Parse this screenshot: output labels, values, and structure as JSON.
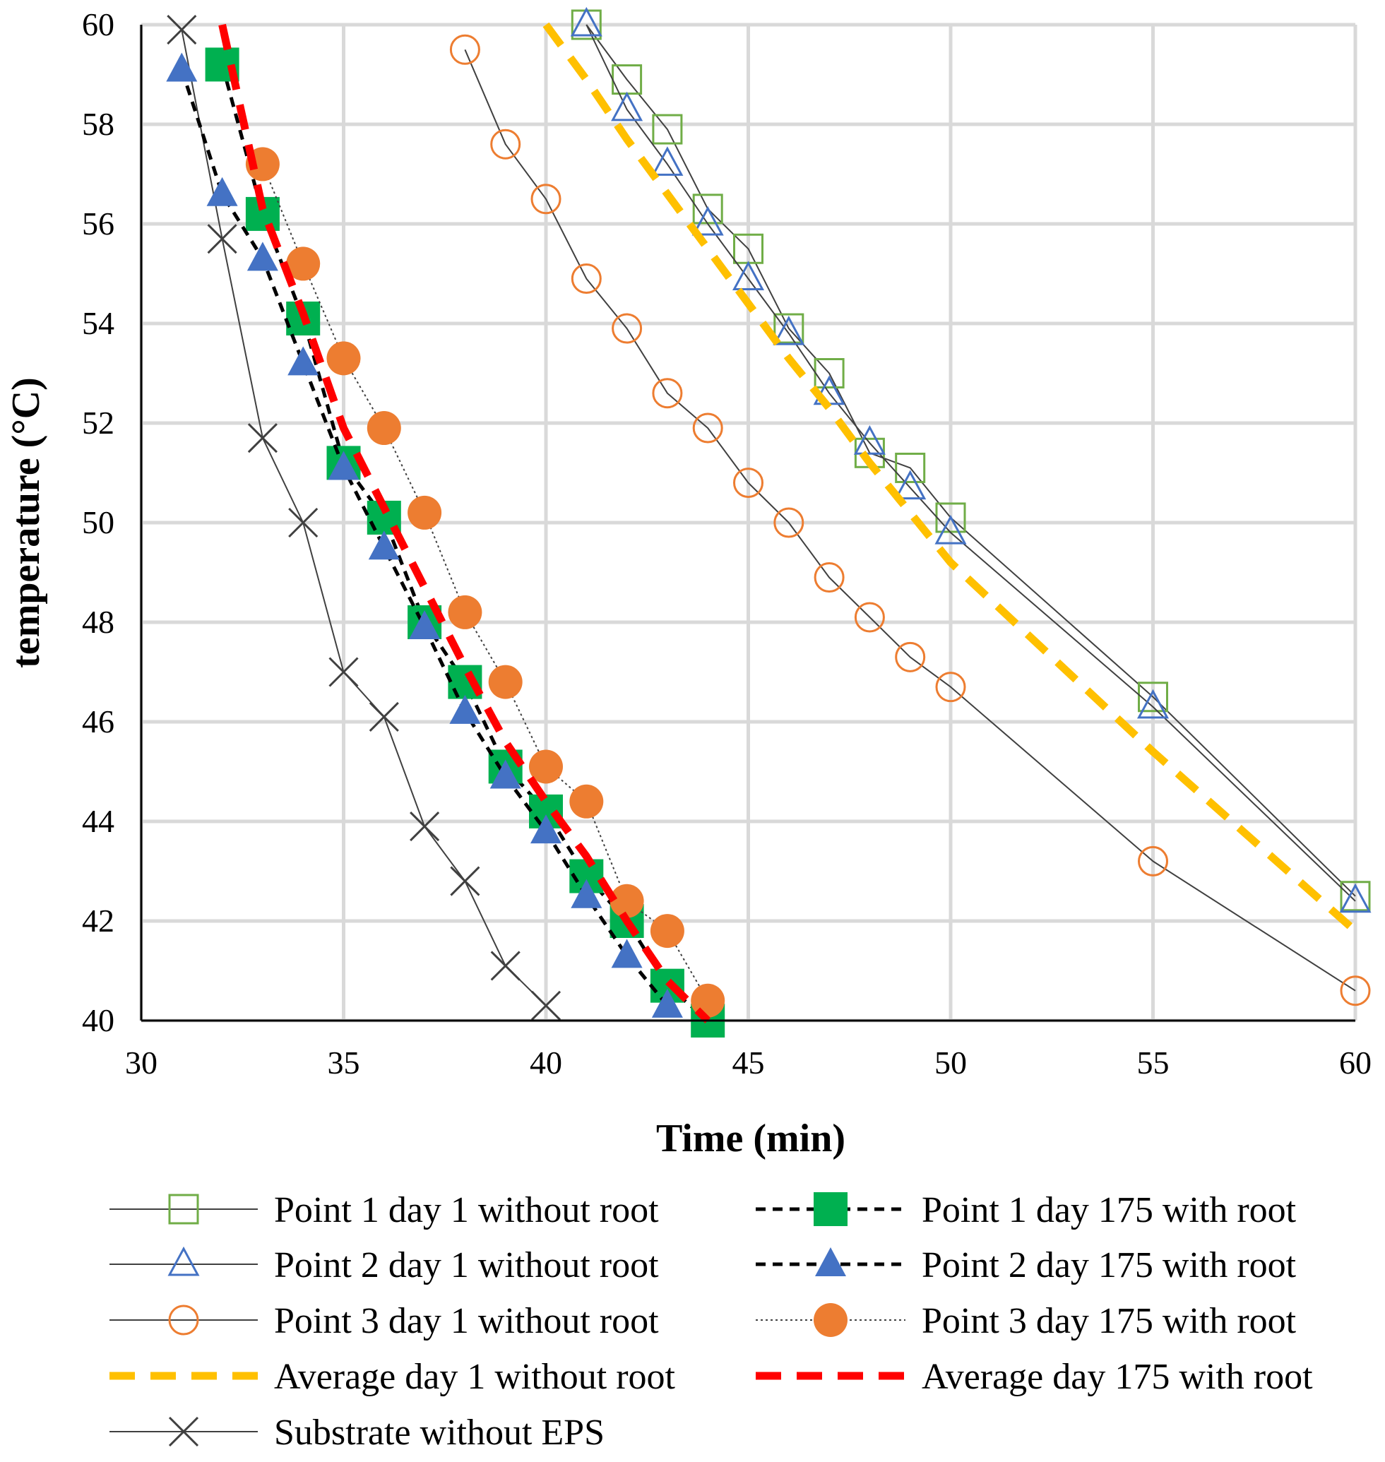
{
  "chart_data": {
    "type": "line",
    "title": "",
    "xlabel": "Time (min)",
    "ylabel": "temperature (°C)",
    "xlim": [
      30,
      60
    ],
    "ylim": [
      40,
      60
    ],
    "xticks": [
      30,
      35,
      40,
      45,
      50,
      55,
      60
    ],
    "yticks": [
      40,
      42,
      44,
      46,
      48,
      50,
      52,
      54,
      56,
      58,
      60
    ],
    "grid": true,
    "legend_position": "bottom",
    "colors": {
      "green": "#00b050",
      "blue": "#4472c4",
      "orange": "#ed7d31",
      "yellow": "#ffc000",
      "red": "#ff0000",
      "grid": "#d9d9d9",
      "axis": "#000000",
      "line": "#404040"
    },
    "series": [
      {
        "name": "Point 1 day 1 without root",
        "marker": "square-open",
        "color": "#70ad47",
        "line": "thin-solid",
        "x": [
          41,
          42,
          43,
          44,
          45,
          46,
          47,
          48,
          49,
          50,
          55,
          60
        ],
        "y": [
          60,
          58.9,
          57.9,
          56.3,
          55.5,
          53.9,
          53.0,
          51.4,
          51.1,
          50.1,
          46.5,
          42.5
        ]
      },
      {
        "name": "Point 2 day 1 without root",
        "marker": "triangle-open",
        "color": "#4472c4",
        "line": "thin-solid",
        "x": [
          41,
          42,
          43,
          44,
          45,
          46,
          47,
          48,
          49,
          50,
          55,
          60
        ],
        "y": [
          60,
          58.3,
          57.2,
          56.0,
          54.9,
          53.8,
          52.6,
          51.6,
          50.7,
          49.8,
          46.3,
          42.4
        ]
      },
      {
        "name": "Point 3 day 1 without root",
        "marker": "circle-open",
        "color": "#ed7d31",
        "line": "thin-solid",
        "x": [
          38,
          39,
          40,
          41,
          42,
          43,
          44,
          45,
          46,
          47,
          48,
          49,
          50,
          55,
          60
        ],
        "y": [
          59.5,
          57.6,
          56.5,
          54.9,
          53.9,
          52.6,
          51.9,
          50.8,
          50.0,
          48.9,
          48.1,
          47.3,
          46.7,
          43.2,
          40.6
        ]
      },
      {
        "name": "Average day 1 without root",
        "marker": "none",
        "color": "#ffc000",
        "line": "thick-dashed",
        "x": [
          40,
          41,
          42,
          43,
          44,
          45,
          46,
          47,
          48,
          49,
          50,
          55,
          60
        ],
        "y": [
          60,
          58.9,
          57.7,
          56.6,
          55.5,
          54.4,
          53.3,
          52.3,
          51.2,
          50.2,
          49.2,
          45.4,
          41.8
        ]
      },
      {
        "name": "Substrate without EPS",
        "marker": "x",
        "color": "#404040",
        "line": "thin-solid",
        "x": [
          31,
          32,
          33,
          34,
          35,
          36,
          37,
          38,
          39,
          40
        ],
        "y": [
          59.9,
          55.7,
          51.7,
          50.0,
          47.0,
          46.1,
          43.9,
          42.8,
          41.1,
          40.3
        ]
      },
      {
        "name": "Point 1 day 175 with root",
        "marker": "square-filled",
        "color": "#00b050",
        "line": "black-dashed",
        "x": [
          32,
          33,
          34,
          35,
          36,
          37,
          38,
          39,
          40,
          41,
          42,
          43,
          44
        ],
        "y": [
          59.2,
          56.2,
          54.1,
          51.2,
          50.1,
          48.0,
          46.8,
          45.1,
          44.2,
          42.9,
          42.0,
          40.7,
          40.0
        ]
      },
      {
        "name": "Point 2 day 175 with root",
        "marker": "triangle-filled",
        "color": "#4472c4",
        "line": "black-dashed",
        "x": [
          31,
          32,
          33,
          34,
          35,
          36,
          37,
          38,
          39,
          40,
          41,
          42,
          43
        ],
        "y": [
          59.1,
          56.6,
          55.3,
          53.2,
          51.1,
          49.5,
          47.9,
          46.2,
          44.9,
          43.8,
          42.5,
          41.3,
          40.3
        ]
      },
      {
        "name": "Point 3 day 175 with root",
        "marker": "circle-filled",
        "color": "#ed7d31",
        "line": "dotted",
        "x": [
          33,
          34,
          35,
          36,
          37,
          38,
          39,
          40,
          41,
          42,
          43,
          44
        ],
        "y": [
          57.2,
          55.2,
          53.3,
          51.9,
          50.2,
          48.2,
          46.8,
          45.1,
          44.4,
          42.4,
          41.8,
          40.4
        ]
      },
      {
        "name": "Average day 175 with root",
        "marker": "none",
        "color": "#ff0000",
        "line": "thick-dashed",
        "x": [
          32,
          33,
          34,
          35,
          36,
          37,
          38,
          39,
          40,
          41,
          42,
          43,
          44
        ],
        "y": [
          60.0,
          56.3,
          54.2,
          51.9,
          50.3,
          48.7,
          47.1,
          45.6,
          44.4,
          43.3,
          42.0,
          40.8,
          40.0
        ]
      }
    ],
    "legend": {
      "left": [
        "Point 1 day 1 without root",
        "Point 2 day 1 without root",
        "Point 3 day 1 without root",
        "Average day 1 without root",
        "Substrate without EPS"
      ],
      "right": [
        "Point 1 day 175 with root",
        "Point 2 day 175 with root",
        "Point 3 day 175 with root",
        "Average day 175 with root"
      ]
    }
  }
}
